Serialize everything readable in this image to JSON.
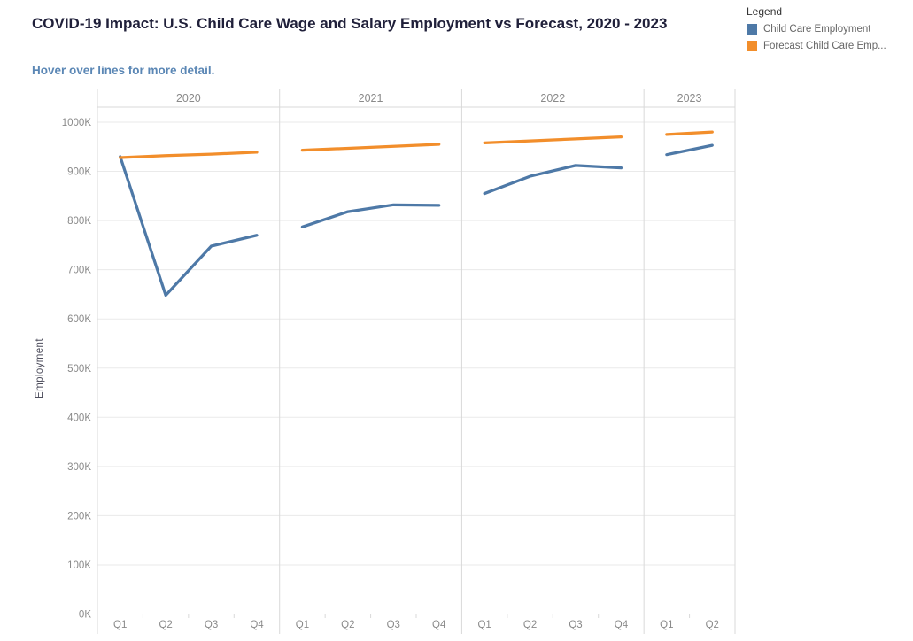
{
  "title": "COVID-19 Impact: U.S. Child Care Wage and Salary Employment vs Forecast, 2020 - 2023",
  "subtitle": "Hover over lines for more detail.",
  "legend": {
    "title": "Legend",
    "items": [
      {
        "label": "Child Care Employment",
        "color": "#4e79a7"
      },
      {
        "label": "Forecast Child Care Emp...",
        "color": "#f28e2b"
      }
    ]
  },
  "chart_data": {
    "type": "line",
    "title": "COVID-19 Impact: U.S. Child Care Wage and Salary Employment vs Forecast, 2020 - 2023",
    "xlabel": "",
    "ylabel": "Employment",
    "ylim": [
      0,
      1000000
    ],
    "y_tick_format": "K",
    "grid": "horizontal",
    "legend_position": "top-right",
    "y_ticks": [
      {
        "v": 0,
        "label": "0K"
      },
      {
        "v": 100,
        "label": "100K"
      },
      {
        "v": 200,
        "label": "200K"
      },
      {
        "v": 300,
        "label": "300K"
      },
      {
        "v": 400,
        "label": "400K"
      },
      {
        "v": 500,
        "label": "500K"
      },
      {
        "v": 600,
        "label": "600K"
      },
      {
        "v": 700,
        "label": "700K"
      },
      {
        "v": 800,
        "label": "800K"
      },
      {
        "v": 900,
        "label": "900K"
      },
      {
        "v": 1000,
        "label": "1000K"
      }
    ],
    "panels": [
      {
        "year": "2020",
        "quarters": [
          "Q1",
          "Q2",
          "Q3",
          "Q4"
        ]
      },
      {
        "year": "2021",
        "quarters": [
          "Q1",
          "Q2",
          "Q3",
          "Q4"
        ]
      },
      {
        "year": "2022",
        "quarters": [
          "Q1",
          "Q2",
          "Q3",
          "Q4"
        ]
      },
      {
        "year": "2023",
        "quarters": [
          "Q1",
          "Q2"
        ]
      }
    ],
    "series": [
      {
        "name": "Child Care Employment",
        "color": "#4e79a7",
        "values_k": [
          [
            930,
            648,
            748,
            770
          ],
          [
            787,
            818,
            832,
            831
          ],
          [
            855,
            890,
            912,
            907
          ],
          [
            934,
            953
          ]
        ]
      },
      {
        "name": "Forecast Child Care Emp...",
        "color": "#f28e2b",
        "values_k": [
          [
            928,
            932,
            935,
            939
          ],
          [
            943,
            947,
            951,
            955
          ],
          [
            958,
            962,
            966,
            970
          ],
          [
            975,
            980
          ]
        ]
      }
    ]
  }
}
